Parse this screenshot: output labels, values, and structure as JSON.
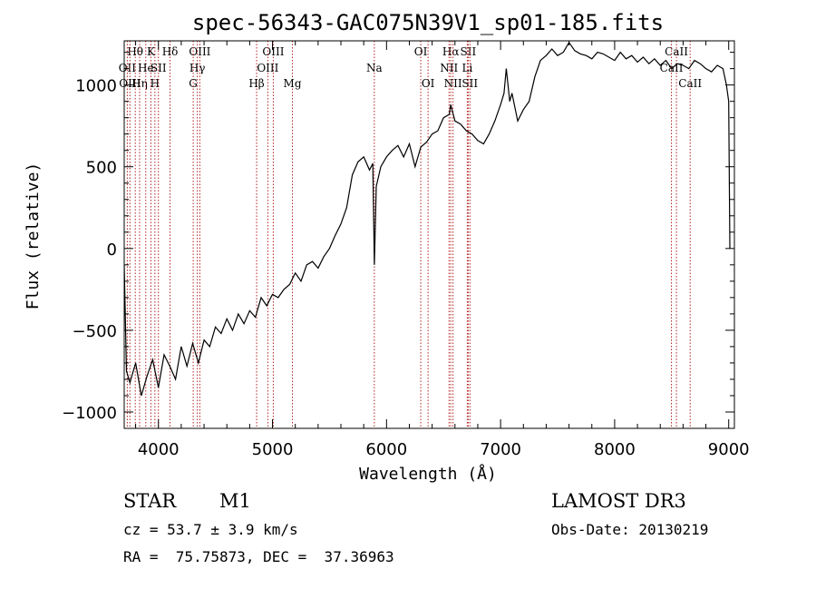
{
  "chart_data": {
    "type": "line",
    "title": "spec-56343-GAC075N39V1_sp01-185.fits",
    "xlabel": "Wavelength (Å)",
    "ylabel": "Flux (relative)",
    "xlim": [
      3700,
      9050
    ],
    "ylim": [
      -1100,
      1270
    ],
    "xticks": [
      4000,
      5000,
      6000,
      7000,
      8000,
      9000
    ],
    "yticks": [
      -1000,
      -500,
      0,
      500,
      1000
    ],
    "grid": false,
    "series": [
      {
        "name": "flux",
        "color": "#000000",
        "x": [
          3700,
          3720,
          3750,
          3800,
          3850,
          3900,
          3950,
          4000,
          4050,
          4100,
          4150,
          4200,
          4250,
          4300,
          4350,
          4400,
          4450,
          4500,
          4550,
          4600,
          4650,
          4700,
          4750,
          4800,
          4850,
          4900,
          4950,
          5000,
          5050,
          5100,
          5150,
          5200,
          5250,
          5300,
          5350,
          5400,
          5450,
          5500,
          5550,
          5600,
          5650,
          5700,
          5750,
          5800,
          5850,
          5880,
          5893,
          5910,
          5950,
          6000,
          6050,
          6100,
          6150,
          6200,
          6250,
          6300,
          6350,
          6400,
          6450,
          6500,
          6550,
          6563,
          6600,
          6650,
          6700,
          6750,
          6800,
          6850,
          6900,
          6950,
          7000,
          7030,
          7050,
          7080,
          7100,
          7150,
          7200,
          7250,
          7300,
          7350,
          7400,
          7450,
          7500,
          7550,
          7600,
          7650,
          7700,
          7750,
          7800,
          7850,
          7900,
          7950,
          8000,
          8050,
          8100,
          8150,
          8200,
          8250,
          8300,
          8350,
          8400,
          8450,
          8500,
          8550,
          8600,
          8650,
          8700,
          8750,
          8800,
          8850,
          8900,
          8950,
          8980,
          9000,
          9010
        ],
        "y": [
          -100,
          -750,
          -820,
          -700,
          -900,
          -780,
          -680,
          -850,
          -650,
          -720,
          -800,
          -600,
          -720,
          -580,
          -700,
          -560,
          -600,
          -480,
          -520,
          -430,
          -500,
          -400,
          -460,
          -380,
          -420,
          -300,
          -350,
          -280,
          -300,
          -250,
          -220,
          -150,
          -200,
          -100,
          -80,
          -120,
          -50,
          0,
          80,
          150,
          250,
          450,
          530,
          560,
          480,
          520,
          -100,
          380,
          500,
          560,
          600,
          630,
          560,
          640,
          500,
          620,
          650,
          700,
          720,
          800,
          820,
          880,
          780,
          760,
          720,
          700,
          660,
          640,
          700,
          780,
          880,
          950,
          1100,
          900,
          950,
          780,
          850,
          900,
          1050,
          1150,
          1180,
          1220,
          1180,
          1200,
          1260,
          1210,
          1190,
          1180,
          1160,
          1200,
          1190,
          1170,
          1150,
          1200,
          1160,
          1180,
          1140,
          1170,
          1130,
          1160,
          1120,
          1150,
          1100,
          1130,
          1120,
          1100,
          1150,
          1130,
          1100,
          1080,
          1120,
          1100,
          1000,
          900,
          0
        ]
      }
    ],
    "lines": [
      {
        "label": "Hθ",
        "x": 3797,
        "row": 0
      },
      {
        "label": "Hη",
        "x": 3835,
        "row": 2
      },
      {
        "label": "OII",
        "x": 3727,
        "row": 1
      },
      {
        "label": "OIII",
        "x": 3750,
        "row": 2
      },
      {
        "label": "He",
        "x": 3889,
        "row": 1
      },
      {
        "label": "K",
        "x": 3934,
        "row": 0
      },
      {
        "label": "H",
        "x": 3969,
        "row": 2
      },
      {
        "label": "SII",
        "x": 4000,
        "row": 1
      },
      {
        "label": "Hδ",
        "x": 4102,
        "row": 0
      },
      {
        "label": "OIII",
        "x": 4363,
        "row": 0
      },
      {
        "label": "Hγ",
        "x": 4341,
        "row": 1
      },
      {
        "label": "G",
        "x": 4305,
        "row": 2
      },
      {
        "label": "Hβ",
        "x": 4861,
        "row": 2
      },
      {
        "label": "OIII",
        "x": 5007,
        "row": 0
      },
      {
        "label": "OIII",
        "x": 4959,
        "row": 1
      },
      {
        "label": "Mg",
        "x": 5175,
        "row": 2
      },
      {
        "label": "Na",
        "x": 5893,
        "row": 1
      },
      {
        "label": "OI",
        "x": 6300,
        "row": 0
      },
      {
        "label": "OI",
        "x": 6364,
        "row": 2
      },
      {
        "label": "Hα",
        "x": 6563,
        "row": 0
      },
      {
        "label": "NII",
        "x": 6548,
        "row": 1
      },
      {
        "label": "NII",
        "x": 6583,
        "row": 2
      },
      {
        "label": "SII",
        "x": 6716,
        "row": 0
      },
      {
        "label": "Li",
        "x": 6708,
        "row": 1
      },
      {
        "label": "SII",
        "x": 6731,
        "row": 2
      },
      {
        "label": "CaII",
        "x": 8542,
        "row": 0
      },
      {
        "label": "CaII",
        "x": 8498,
        "row": 1
      },
      {
        "label": "CaII",
        "x": 8662,
        "row": 2
      }
    ]
  },
  "info": {
    "object_class": "STAR",
    "subclass": "M1",
    "cz_line": "cz = 53.7 ± 3.9 km/s",
    "radec_line": "RA =  75.75873, DEC =  37.36963",
    "survey": "LAMOST DR3",
    "obs_date_line": "Obs-Date: 20130219"
  }
}
